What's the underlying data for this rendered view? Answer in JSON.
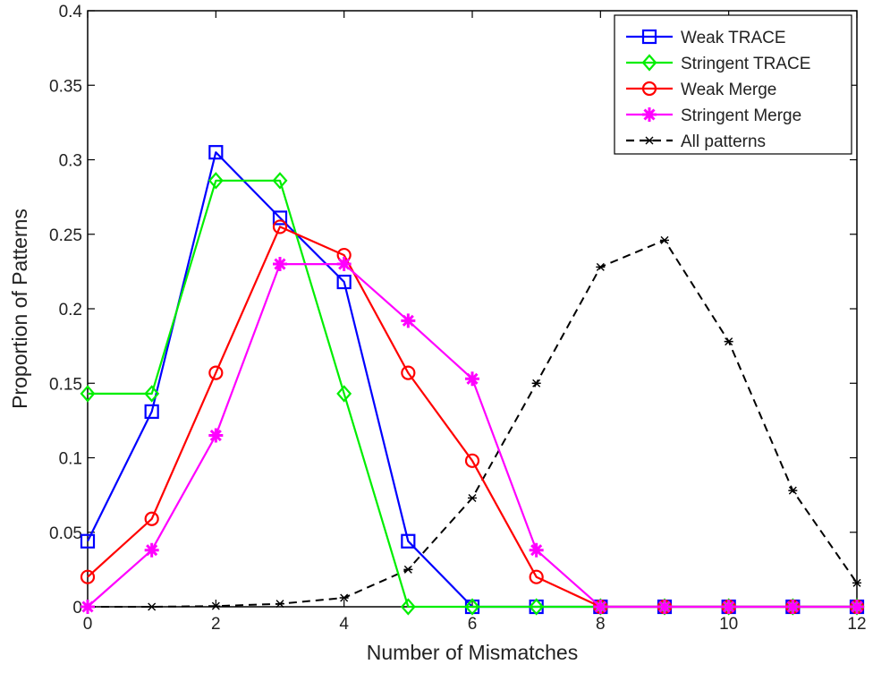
{
  "chart_data": {
    "type": "line",
    "title": "",
    "xlabel": "Number of Mismatches",
    "ylabel": "Proportion of Patterns",
    "xlim": [
      0,
      12
    ],
    "ylim": [
      0,
      0.4
    ],
    "xticks": [
      "0",
      "2",
      "4",
      "6",
      "8",
      "10",
      "12"
    ],
    "yticks": [
      "0",
      "0.05",
      "0.1",
      "0.15",
      "0.2",
      "0.25",
      "0.3",
      "0.35",
      "0.4"
    ],
    "grid": false,
    "legend_position": "top-right",
    "series": [
      {
        "name": "Weak TRACE",
        "color": "#0000ff",
        "marker": "square",
        "dash": "solid",
        "x": [
          0,
          1,
          2,
          3,
          4,
          5,
          6,
          7,
          8,
          9,
          10,
          11,
          12
        ],
        "y": [
          0.044,
          0.131,
          0.305,
          0.261,
          0.218,
          0.044,
          0,
          0,
          0,
          0,
          0,
          0,
          0
        ]
      },
      {
        "name": "Stringent TRACE",
        "color": "#00ee00",
        "marker": "diamond",
        "dash": "solid",
        "x": [
          0,
          1,
          2,
          3,
          4,
          5,
          6,
          7,
          8,
          9,
          10,
          11,
          12
        ],
        "y": [
          0.143,
          0.143,
          0.286,
          0.286,
          0.143,
          0,
          0,
          0,
          0,
          0,
          0,
          0,
          0
        ]
      },
      {
        "name": "Weak Merge",
        "color": "#ff0000",
        "marker": "circle",
        "dash": "solid",
        "x": [
          0,
          1,
          2,
          3,
          4,
          5,
          6,
          7,
          8,
          9,
          10,
          11,
          12
        ],
        "y": [
          0.02,
          0.059,
          0.157,
          0.255,
          0.236,
          0.157,
          0.098,
          0.02,
          0,
          0,
          0,
          0,
          0
        ]
      },
      {
        "name": "Stringent Merge",
        "color": "#ff00ff",
        "marker": "star",
        "dash": "solid",
        "x": [
          0,
          1,
          2,
          3,
          4,
          5,
          6,
          7,
          8,
          9,
          10,
          11,
          12
        ],
        "y": [
          0,
          0.038,
          0.115,
          0.23,
          0.23,
          0.192,
          0.153,
          0.038,
          0,
          0,
          0,
          0,
          0
        ]
      },
      {
        "name": "All patterns",
        "color": "#000000",
        "marker": "asterisk",
        "dash": "dashed",
        "x": [
          0,
          1,
          2,
          3,
          4,
          5,
          6,
          7,
          8,
          9,
          10,
          11,
          12
        ],
        "y": [
          0,
          0,
          0.0005,
          0.002,
          0.006,
          0.025,
          0.073,
          0.15,
          0.228,
          0.246,
          0.178,
          0.078,
          0.016
        ]
      }
    ]
  }
}
